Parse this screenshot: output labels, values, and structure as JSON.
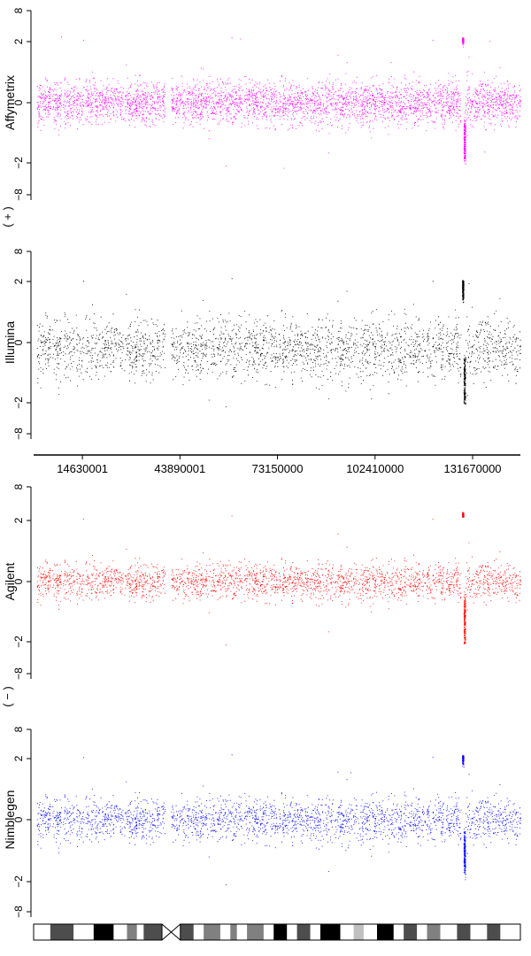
{
  "chart_data": {
    "type": "scatter",
    "x_axis": {
      "ticks": [
        "14630001",
        "43890001",
        "73150000",
        "102410000",
        "131670000"
      ],
      "tick_values": [
        14630001,
        43890001,
        73150000,
        102410000,
        131670000
      ]
    },
    "y_ticks": [
      "8",
      "2",
      "0",
      "−2",
      "−8"
    ],
    "strand_labels": [
      "( + )",
      "( − )"
    ],
    "panels": [
      {
        "ylabel": "Affymetrix",
        "color": "#ff00ff",
        "density": 9000,
        "spread": 0.35,
        "baseline": 0.0,
        "aberration": {
          "start": 128500000,
          "end": 129500000,
          "high": 2.3,
          "low": -1.9
        }
      },
      {
        "ylabel": "Illumina",
        "color": "#000000",
        "density": 6500,
        "spread": 0.5,
        "baseline": -0.2,
        "aberration": {
          "start": 128500000,
          "end": 129500000,
          "high": 1.8,
          "low": -2.0
        }
      },
      {
        "ylabel": "Agilent",
        "color": "#ff0000",
        "density": 6000,
        "spread": 0.3,
        "baseline": 0.0,
        "aberration": {
          "start": 128500000,
          "end": 129500000,
          "high": 3.0,
          "low": -2.0
        }
      },
      {
        "ylabel": "Nimblegen",
        "color": "#0000ff",
        "density": 8000,
        "spread": 0.35,
        "baseline": 0.0,
        "aberration": {
          "start": 128500000,
          "end": 129500000,
          "high": 2.2,
          "low": -1.6
        }
      }
    ],
    "gaps": [
      [
        5100000,
        5600000
      ],
      [
        8300000,
        8800000
      ],
      [
        39500000,
        41200000
      ]
    ],
    "x_range": [
      0,
      146000000
    ],
    "ideogram": {
      "centromere": [
        38500000,
        44000000
      ],
      "bands": [
        {
          "start": 0,
          "end": 5000000,
          "color": "#ffffff"
        },
        {
          "start": 5000000,
          "end": 12000000,
          "color": "#4d4d4d"
        },
        {
          "start": 12000000,
          "end": 18000000,
          "color": "#ffffff"
        },
        {
          "start": 18000000,
          "end": 24000000,
          "color": "#000000"
        },
        {
          "start": 24000000,
          "end": 28000000,
          "color": "#ffffff"
        },
        {
          "start": 28000000,
          "end": 31000000,
          "color": "#808080"
        },
        {
          "start": 31000000,
          "end": 33000000,
          "color": "#ffffff"
        },
        {
          "start": 33000000,
          "end": 38500000,
          "color": "#4d4d4d"
        },
        {
          "start": 38500000,
          "end": 44000000,
          "color": "#ffffff"
        },
        {
          "start": 44000000,
          "end": 48000000,
          "color": "#4d4d4d"
        },
        {
          "start": 48000000,
          "end": 51000000,
          "color": "#ffffff"
        },
        {
          "start": 51000000,
          "end": 56000000,
          "color": "#808080"
        },
        {
          "start": 56000000,
          "end": 59000000,
          "color": "#ffffff"
        },
        {
          "start": 59000000,
          "end": 61000000,
          "color": "#808080"
        },
        {
          "start": 61000000,
          "end": 64000000,
          "color": "#ffffff"
        },
        {
          "start": 64000000,
          "end": 69000000,
          "color": "#808080"
        },
        {
          "start": 69000000,
          "end": 72000000,
          "color": "#ffffff"
        },
        {
          "start": 72000000,
          "end": 76000000,
          "color": "#000000"
        },
        {
          "start": 76000000,
          "end": 79000000,
          "color": "#ffffff"
        },
        {
          "start": 79000000,
          "end": 83000000,
          "color": "#4d4d4d"
        },
        {
          "start": 83000000,
          "end": 86000000,
          "color": "#ffffff"
        },
        {
          "start": 86000000,
          "end": 92000000,
          "color": "#000000"
        },
        {
          "start": 92000000,
          "end": 96000000,
          "color": "#ffffff"
        },
        {
          "start": 96000000,
          "end": 99000000,
          "color": "#c0c0c0"
        },
        {
          "start": 99000000,
          "end": 103000000,
          "color": "#ffffff"
        },
        {
          "start": 103000000,
          "end": 108000000,
          "color": "#000000"
        },
        {
          "start": 108000000,
          "end": 111000000,
          "color": "#ffffff"
        },
        {
          "start": 111000000,
          "end": 115000000,
          "color": "#4d4d4d"
        },
        {
          "start": 115000000,
          "end": 118000000,
          "color": "#ffffff"
        },
        {
          "start": 118000000,
          "end": 122000000,
          "color": "#808080"
        },
        {
          "start": 122000000,
          "end": 127000000,
          "color": "#ffffff"
        },
        {
          "start": 127000000,
          "end": 131000000,
          "color": "#4d4d4d"
        },
        {
          "start": 131000000,
          "end": 136000000,
          "color": "#ffffff"
        },
        {
          "start": 136000000,
          "end": 140000000,
          "color": "#4d4d4d"
        },
        {
          "start": 140000000,
          "end": 146000000,
          "color": "#ffffff"
        }
      ]
    },
    "grid": false,
    "legend": "none"
  }
}
